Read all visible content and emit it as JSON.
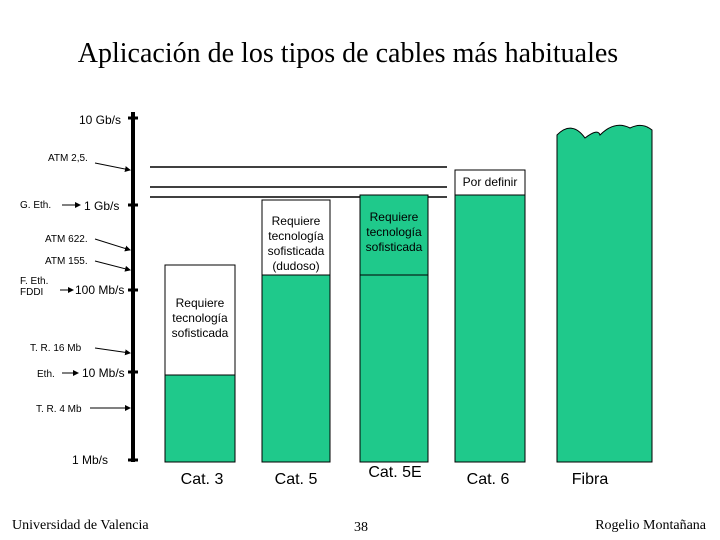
{
  "title": "Aplicación de los tipos de cables más habituales",
  "axis_labels": {
    "gb10": "10 Gb/s",
    "atm25": "ATM 2,5.",
    "geth": "G. Eth.",
    "gb1": "1 Gb/s",
    "atm622": "ATM 622.",
    "atm155": "ATM 155.",
    "feth": "F. Eth.",
    "fddi": "FDDI",
    "mb100": "100 Mb/s",
    "tr16": "T. R. 16 Mb",
    "eth": "Eth.",
    "mb10": "10 Mb/s",
    "tr4": "T. R. 4 Mb",
    "mb1": "1 Mb/s"
  },
  "columns": [
    {
      "name": "Cat. 3",
      "note": [
        "Requiere",
        "tecnología",
        "sofisticada"
      ]
    },
    {
      "name": "Cat. 5",
      "note": [
        "Requiere",
        "tecnología",
        "sofisticada",
        "(dudoso)"
      ]
    },
    {
      "name": "Cat. 5E",
      "note": [
        "Requiere",
        "tecnología",
        "sofisticada"
      ]
    },
    {
      "name": "Cat. 6",
      "note": [
        "Por definir"
      ]
    },
    {
      "name": "Fibra"
    }
  ],
  "footer": {
    "left": "Universidad de Valencia",
    "page": "38",
    "right": "Rogelio Montañana"
  }
}
